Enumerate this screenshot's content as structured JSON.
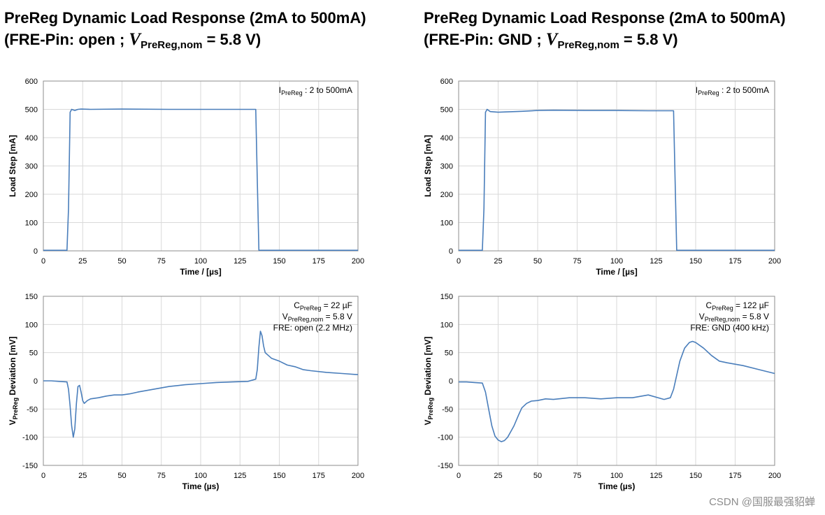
{
  "panels": [
    {
      "title_line1": "PreReg Dynamic Load Response (2mA to 500mA)",
      "title_line2_prefix": "(FRE-Pin: open ; ",
      "title_v": "V",
      "title_sub": "PreReg,nom",
      "title_line2_suffix": " = 5.8 V)"
    },
    {
      "title_line1": "PreReg Dynamic Load Response (2mA to 500mA)",
      "title_line2_prefix": "(FRE-Pin: GND ; ",
      "title_v": "V",
      "title_sub": "PreReg,nom",
      "title_line2_suffix": " = 5.8 V)"
    }
  ],
  "watermark": "CSDN @国服最强貂蝉",
  "series_color": "#4a7ebb",
  "chart_data": [
    {
      "id": "load-left",
      "type": "line",
      "xlabel": "Time / [µs]",
      "ylabel": "Load Step  [mA]",
      "xlim": [
        0,
        200
      ],
      "ylim": [
        0,
        600
      ],
      "xticks": [
        0,
        25,
        50,
        75,
        100,
        125,
        150,
        175,
        200
      ],
      "yticks": [
        0,
        100,
        200,
        300,
        400,
        500,
        600
      ],
      "annotation": [
        {
          "main": "I",
          "sub": "PreReg",
          "rest": " :  2 to 500mA"
        }
      ],
      "x": [
        0,
        15,
        16,
        17,
        18,
        20,
        22,
        24,
        30,
        50,
        80,
        110,
        135,
        136,
        137,
        140,
        150,
        200
      ],
      "y": [
        2,
        2,
        150,
        490,
        500,
        496,
        500,
        501,
        500,
        501,
        500,
        500,
        500,
        250,
        2,
        2,
        2,
        2
      ]
    },
    {
      "id": "dev-left",
      "type": "line",
      "xlabel": "Time (µs)",
      "ylabel": "VPreReg Deviation  [mV]",
      "ylabel_main": "V",
      "ylabel_sub": "PreReg",
      "ylabel_rest": "  Deviation  [mV]",
      "xlim": [
        0,
        200
      ],
      "ylim": [
        -150,
        150
      ],
      "xticks": [
        0,
        25,
        50,
        75,
        100,
        125,
        150,
        175,
        200
      ],
      "yticks": [
        -150,
        -100,
        -50,
        0,
        50,
        100,
        150
      ],
      "annotation": [
        {
          "main": "C",
          "sub": "PreReg",
          "rest": " = 22 µF"
        },
        {
          "main": "V",
          "sub": "PreReg,nom",
          "rest": " = 5.8 V"
        },
        {
          "main": "FRE: open (2.2 MHz)",
          "sub": "",
          "rest": ""
        }
      ],
      "x": [
        0,
        5,
        10,
        15,
        16,
        17,
        18,
        19,
        20,
        21,
        22,
        23,
        24,
        25,
        26,
        28,
        30,
        35,
        40,
        45,
        50,
        55,
        60,
        70,
        80,
        90,
        100,
        110,
        120,
        130,
        135,
        136,
        137,
        138,
        139,
        140,
        141,
        143,
        145,
        150,
        155,
        160,
        165,
        170,
        180,
        190,
        200
      ],
      "y": [
        0,
        0,
        -1,
        -2,
        -15,
        -45,
        -80,
        -100,
        -85,
        -40,
        -10,
        -8,
        -20,
        -35,
        -40,
        -35,
        -32,
        -30,
        -27,
        -25,
        -25,
        -23,
        -20,
        -15,
        -10,
        -7,
        -5,
        -3,
        -2,
        -1,
        3,
        20,
        60,
        88,
        80,
        62,
        50,
        45,
        40,
        35,
        28,
        25,
        20,
        18,
        15,
        13,
        11
      ]
    },
    {
      "id": "load-right",
      "type": "line",
      "xlabel": "Time / [µs]",
      "ylabel": "Load Step  [mA]",
      "xlim": [
        0,
        200
      ],
      "ylim": [
        0,
        600
      ],
      "xticks": [
        0,
        25,
        50,
        75,
        100,
        125,
        150,
        175,
        200
      ],
      "yticks": [
        0,
        100,
        200,
        300,
        400,
        500,
        600
      ],
      "annotation": [
        {
          "main": "I",
          "sub": "PreReg",
          "rest": " :  2 to 500mA"
        }
      ],
      "x": [
        0,
        15,
        16,
        17,
        18,
        20,
        25,
        40,
        50,
        60,
        80,
        100,
        120,
        136,
        137,
        138,
        140,
        150,
        200
      ],
      "y": [
        2,
        2,
        150,
        490,
        500,
        492,
        490,
        493,
        496,
        497,
        496,
        496,
        495,
        495,
        250,
        2,
        2,
        2,
        2
      ]
    },
    {
      "id": "dev-right",
      "type": "line",
      "xlabel": "Time (µs)",
      "ylabel": "VPreReg Deviation  [mV]",
      "ylabel_main": "V",
      "ylabel_sub": "PreReg",
      "ylabel_rest": "  Deviation  [mV]",
      "xlim": [
        0,
        200
      ],
      "ylim": [
        -150,
        150
      ],
      "xticks": [
        0,
        25,
        50,
        75,
        100,
        125,
        150,
        175,
        200
      ],
      "yticks": [
        -150,
        -100,
        -50,
        0,
        50,
        100,
        150
      ],
      "annotation": [
        {
          "main": "C",
          "sub": "PreReg",
          "rest": " = 122 µF"
        },
        {
          "main": "V",
          "sub": "PreReg,nom",
          "rest": " = 5.8 V"
        },
        {
          "main": "FRE: GND (400 kHz)",
          "sub": "",
          "rest": ""
        }
      ],
      "x": [
        0,
        5,
        10,
        15,
        17,
        19,
        21,
        23,
        25,
        27,
        29,
        31,
        33,
        35,
        38,
        40,
        43,
        46,
        50,
        55,
        60,
        70,
        80,
        90,
        100,
        110,
        120,
        130,
        134,
        136,
        138,
        140,
        143,
        146,
        148,
        150,
        155,
        160,
        165,
        170,
        180,
        190,
        200
      ],
      "y": [
        -2,
        -2,
        -3,
        -4,
        -20,
        -50,
        -80,
        -98,
        -105,
        -108,
        -106,
        -100,
        -90,
        -80,
        -60,
        -48,
        -40,
        -36,
        -35,
        -32,
        -33,
        -30,
        -30,
        -32,
        -30,
        -30,
        -25,
        -33,
        -30,
        -15,
        10,
        35,
        58,
        68,
        70,
        68,
        58,
        45,
        35,
        32,
        27,
        20,
        13
      ]
    }
  ]
}
